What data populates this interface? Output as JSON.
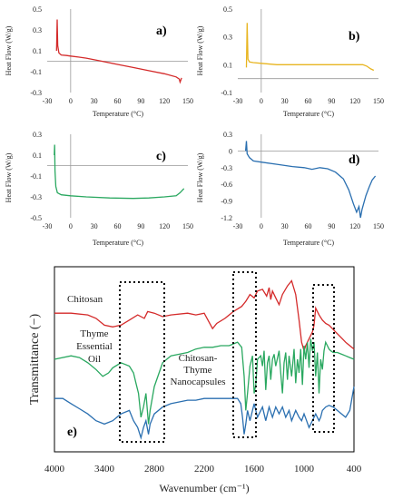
{
  "chart_data": [
    {
      "id": "a",
      "type": "line",
      "panel_label": "a)",
      "xlabel": "Temperature (°C)",
      "ylabel": "Heat Flow (W/g)",
      "xlim": [
        -30,
        150
      ],
      "ylim": [
        -0.3,
        0.5
      ],
      "xticks": [
        "-30",
        "0",
        "30",
        "60",
        "90",
        "120",
        "150"
      ],
      "yticks": [
        "-0.3",
        "-0.1",
        "0.1",
        "0.3",
        "0.5"
      ],
      "color": "#d42a2a",
      "x": [
        -18,
        -17.2,
        -16.5,
        -15,
        -12,
        -5,
        0,
        10,
        20,
        40,
        60,
        80,
        100,
        120,
        135,
        139,
        140,
        142
      ],
      "y": [
        0.1,
        0.4,
        0.15,
        0.08,
        0.06,
        0.055,
        0.05,
        0.04,
        0.03,
        0.0,
        -0.03,
        -0.06,
        -0.09,
        -0.12,
        -0.15,
        -0.17,
        -0.2,
        -0.16
      ]
    },
    {
      "id": "b",
      "type": "line",
      "panel_label": "b)",
      "xlabel": "Temperature (°C)",
      "ylabel": "Heat Flow (W/g)",
      "xlim": [
        -30,
        150
      ],
      "ylim": [
        -0.1,
        0.5
      ],
      "xticks": [
        "-30",
        "0",
        "30",
        "60",
        "90",
        "120",
        "150"
      ],
      "yticks": [
        "-0.1",
        "0.1",
        "0.3",
        "0.5"
      ],
      "color": "#e8b520",
      "x": [
        -19,
        -18,
        -17,
        -15,
        -10,
        0,
        20,
        50,
        80,
        110,
        130,
        135,
        140,
        144
      ],
      "y": [
        0.08,
        0.4,
        0.14,
        0.12,
        0.115,
        0.11,
        0.1,
        0.1,
        0.1,
        0.1,
        0.1,
        0.09,
        0.07,
        0.06
      ]
    },
    {
      "id": "c",
      "type": "line",
      "panel_label": "c)",
      "xlabel": "Temperature (°C)",
      "ylabel": "Heat Flow (W/g)",
      "xlim": [
        -30,
        150
      ],
      "ylim": [
        -0.5,
        0.3
      ],
      "xticks": [
        "-30",
        "0",
        "30",
        "60",
        "90",
        "120",
        "150"
      ],
      "yticks": [
        "-0.5",
        "-0.3",
        "-0.1",
        "0.1",
        "0.3"
      ],
      "color": "#2aa860",
      "x": [
        -21,
        -20.5,
        -20,
        -19,
        -17,
        -12,
        0,
        20,
        50,
        80,
        100,
        120,
        135,
        140,
        145
      ],
      "y": [
        0.1,
        0.2,
        -0.05,
        -0.2,
        -0.26,
        -0.28,
        -0.29,
        -0.3,
        -0.31,
        -0.315,
        -0.31,
        -0.3,
        -0.29,
        -0.26,
        -0.22
      ]
    },
    {
      "id": "d",
      "type": "line",
      "panel_label": "d)",
      "xlabel": "Temperature (°C)",
      "ylabel": "Heat Flow (W/g)",
      "xlim": [
        -30,
        150
      ],
      "ylim": [
        -1.2,
        0.3
      ],
      "xticks": [
        "-30",
        "0",
        "30",
        "60",
        "90",
        "120",
        "150"
      ],
      "yticks": [
        "-1.2",
        "-0.9",
        "-0.6",
        "-0.3",
        "0",
        "0.3"
      ],
      "color": "#2a6fb0",
      "x": [
        -20,
        -19,
        -18,
        -15,
        -10,
        0,
        20,
        40,
        55,
        65,
        75,
        85,
        95,
        105,
        112,
        118,
        122,
        125,
        127,
        129,
        131,
        134,
        138,
        142,
        146
      ],
      "y": [
        0.0,
        0.18,
        -0.05,
        -0.12,
        -0.18,
        -0.2,
        -0.24,
        -0.28,
        -0.3,
        -0.33,
        -0.3,
        -0.32,
        -0.38,
        -0.5,
        -0.7,
        -0.95,
        -1.1,
        -1.0,
        -1.2,
        -1.05,
        -0.95,
        -0.8,
        -0.65,
        -0.52,
        -0.45
      ]
    },
    {
      "id": "e",
      "type": "line",
      "panel_label": "e)",
      "xlabel": "Wavenumber (cm⁻¹)",
      "ylabel": "Transmittance (−)",
      "xlim": [
        4000,
        400
      ],
      "xticks": [
        "4000",
        "3400",
        "2800",
        "2200",
        "1600",
        "1000",
        "400"
      ],
      "series": [
        {
          "name": "Chitosan",
          "color": "#d42a2a",
          "x": [
            4000,
            3800,
            3600,
            3500,
            3400,
            3300,
            3200,
            3100,
            3000,
            2920,
            2880,
            2800,
            2700,
            2600,
            2400,
            2300,
            2200,
            2100,
            2050,
            1950,
            1850,
            1750,
            1700,
            1650,
            1600,
            1560,
            1500,
            1450,
            1420,
            1400,
            1380,
            1340,
            1300,
            1260,
            1200,
            1150,
            1100,
            1060,
            1030,
            1000,
            980,
            940,
            900,
            880,
            860,
            820,
            780,
            740,
            700,
            660,
            620,
            580,
            540,
            500,
            450,
            400
          ],
          "y": [
            77,
            77,
            76,
            74,
            70,
            69,
            70,
            73,
            76,
            74,
            78,
            77,
            75,
            76,
            77,
            76,
            77,
            68,
            71,
            74,
            78,
            81,
            84,
            88,
            86,
            90,
            91,
            87,
            92,
            85,
            90,
            86,
            82,
            88,
            93,
            96,
            88,
            73,
            60,
            55,
            58,
            62,
            66,
            70,
            80,
            76,
            73,
            71,
            70,
            68,
            66,
            64,
            62,
            60,
            58,
            56
          ]
        },
        {
          "name": "Thyme Essential Oil",
          "color": "#2aa860",
          "x": [
            4000,
            3800,
            3700,
            3600,
            3500,
            3420,
            3350,
            3300,
            3200,
            3100,
            3050,
            3020,
            2990,
            2960,
            2930,
            2900,
            2870,
            2850,
            2800,
            2700,
            2600,
            2500,
            2400,
            2300,
            2200,
            2100,
            2000,
            1900,
            1800,
            1750,
            1720,
            1700,
            1680,
            1650,
            1620,
            1600,
            1580,
            1560,
            1520,
            1500,
            1480,
            1460,
            1440,
            1420,
            1400,
            1380,
            1360,
            1340,
            1300,
            1280,
            1260,
            1240,
            1220,
            1200,
            1180,
            1150,
            1120,
            1100,
            1080,
            1060,
            1040,
            1020,
            1000,
            980,
            960,
            940,
            920,
            900,
            880,
            860,
            840,
            820,
            800,
            780,
            760,
            740,
            720,
            700,
            680,
            650,
            600,
            550,
            500,
            450,
            400
          ],
          "y": [
            50,
            52,
            51,
            48,
            44,
            40,
            42,
            45,
            48,
            46,
            42,
            36,
            30,
            16,
            22,
            30,
            12,
            20,
            34,
            48,
            52,
            53,
            54,
            56,
            57,
            57,
            58,
            58,
            60,
            57,
            40,
            20,
            30,
            46,
            52,
            30,
            35,
            50,
            52,
            46,
            55,
            32,
            48,
            52,
            38,
            50,
            53,
            46,
            55,
            42,
            30,
            48,
            54,
            38,
            52,
            40,
            56,
            36,
            50,
            42,
            56,
            35,
            58,
            50,
            60,
            45,
            62,
            55,
            60,
            40,
            54,
            30,
            50,
            44,
            55,
            60,
            58,
            56,
            55,
            54,
            54,
            53,
            52,
            51,
            50
          ]
        },
        {
          "name": "Chitosan-Thyme Nanocapsules",
          "color": "#2a6fb0",
          "x": [
            4000,
            3900,
            3800,
            3700,
            3600,
            3500,
            3400,
            3300,
            3200,
            3100,
            3050,
            3000,
            2960,
            2930,
            2900,
            2870,
            2850,
            2800,
            2700,
            2600,
            2500,
            2400,
            2300,
            2200,
            2100,
            2000,
            1900,
            1800,
            1760,
            1740,
            1720,
            1700,
            1680,
            1650,
            1620,
            1600,
            1560,
            1500,
            1460,
            1420,
            1380,
            1340,
            1300,
            1260,
            1220,
            1180,
            1150,
            1100,
            1060,
            1030,
            1000,
            970,
            940,
            900,
            860,
            820,
            800,
            780,
            740,
            700,
            650,
            600,
            550,
            500,
            450,
            400
          ],
          "y": [
            27,
            27,
            24,
            21,
            18,
            14,
            12,
            14,
            18,
            20,
            14,
            10,
            4,
            10,
            14,
            6,
            12,
            18,
            22,
            24,
            25,
            26,
            26,
            27,
            27,
            27,
            27,
            27,
            24,
            16,
            6,
            12,
            20,
            14,
            20,
            24,
            16,
            22,
            14,
            22,
            16,
            22,
            18,
            22,
            16,
            20,
            14,
            20,
            16,
            14,
            18,
            14,
            10,
            14,
            18,
            14,
            16,
            20,
            22,
            23,
            22,
            20,
            18,
            16,
            20,
            34
          ]
        }
      ],
      "annotations": [
        "Chitosan",
        "Thyme",
        "Essential",
        "Oil",
        "Chitosan-",
        "Thyme",
        "Nanocapsules"
      ]
    }
  ]
}
